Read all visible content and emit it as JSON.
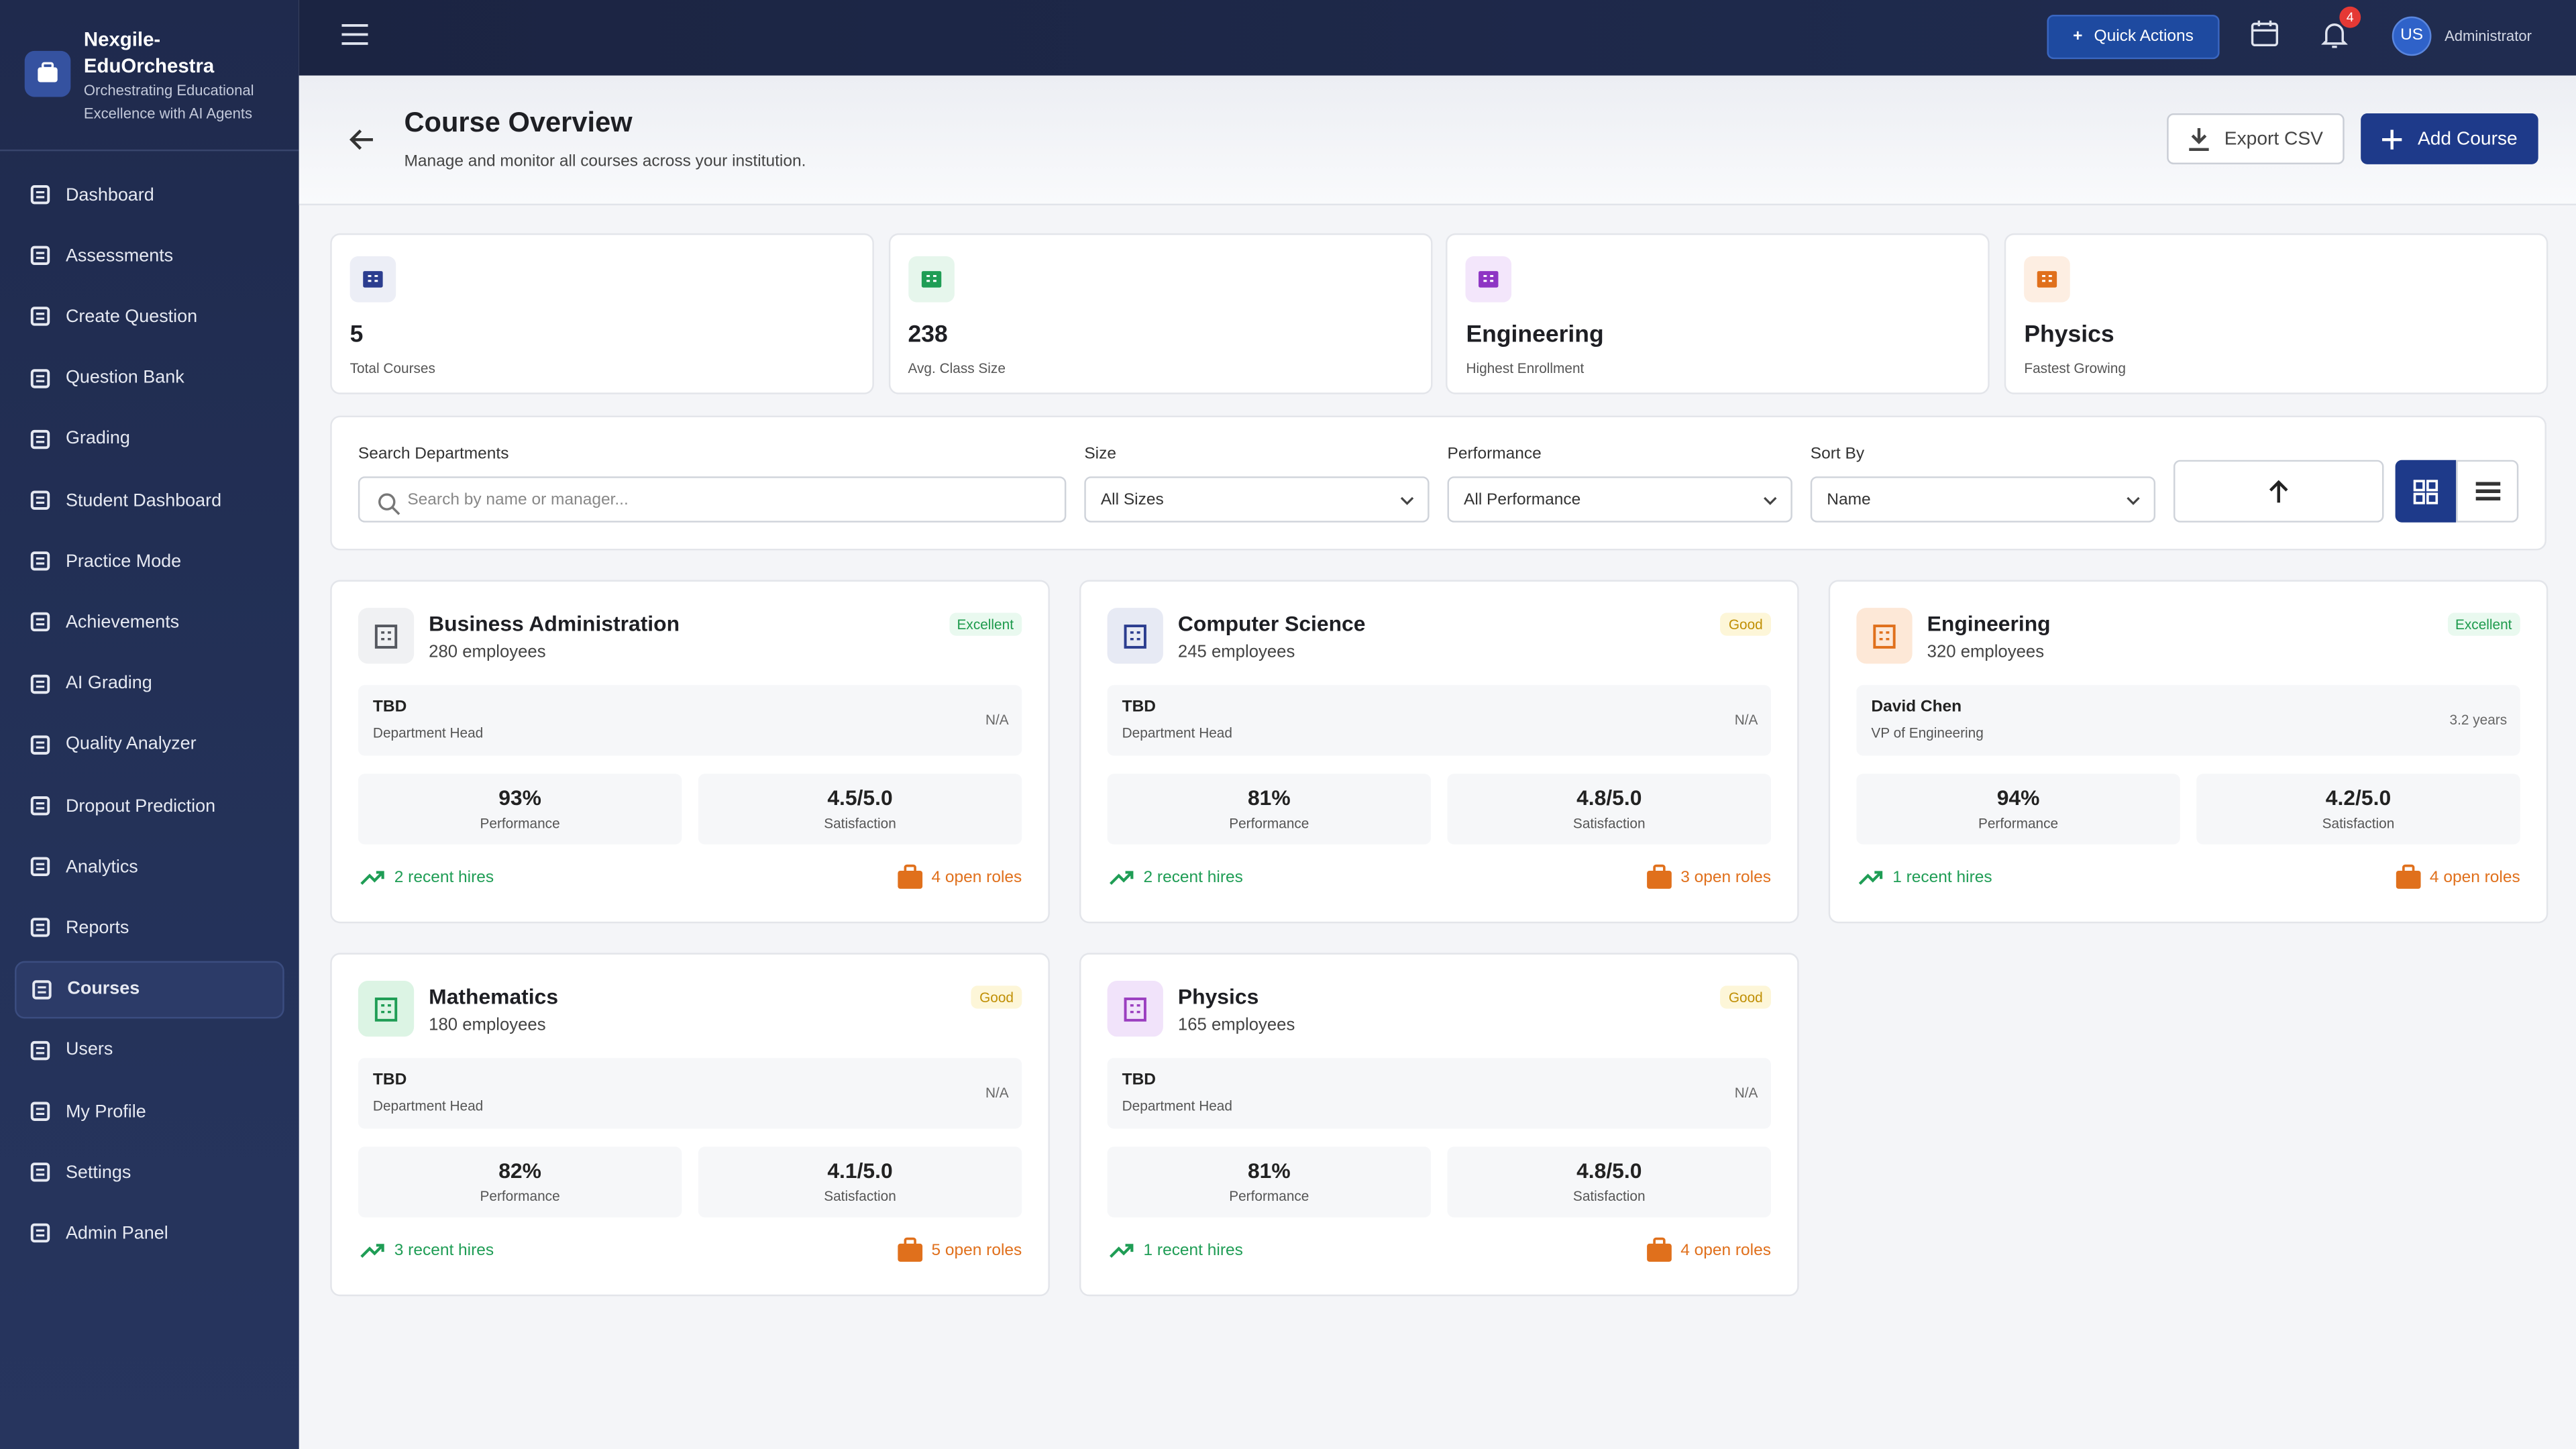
{
  "sidebar": {
    "brand": {
      "name": "Nexgile-EduOrchestra",
      "tagline": "Orchestrating Educational Excellence with AI Agents"
    },
    "nav": [
      {
        "label": "Dashboard"
      },
      {
        "label": "Assessments"
      },
      {
        "label": "Create Question"
      },
      {
        "label": "Question Bank"
      },
      {
        "label": "Grading"
      },
      {
        "label": "Student Dashboard"
      },
      {
        "label": "Practice Mode"
      },
      {
        "label": "Achievements"
      },
      {
        "label": "AI Grading"
      },
      {
        "label": "Quality Analyzer"
      },
      {
        "label": "Dropout Prediction"
      },
      {
        "label": "Analytics"
      },
      {
        "label": "Reports"
      },
      {
        "label": "Courses",
        "active": true
      },
      {
        "label": "Users"
      },
      {
        "label": "My Profile"
      },
      {
        "label": "Settings"
      },
      {
        "label": "Admin Panel"
      }
    ]
  },
  "topbar": {
    "quick_actions": "Quick Actions",
    "notification_count": 4,
    "avatar": "US",
    "role": "Administrator"
  },
  "header": {
    "title": "Course Overview",
    "subtitle": "Manage and monitor all courses across your institution.",
    "export": "Export CSV",
    "add": "Add Course"
  },
  "stats": [
    {
      "value": 5,
      "label": "Total Courses",
      "color": "#2b3d8f",
      "bg": "#eceef6"
    },
    {
      "value": 238,
      "label": "Avg. Class Size",
      "color": "#1f9d55",
      "bg": "#e6f6ec"
    },
    {
      "value": "Engineering",
      "label": "Highest Enrollment",
      "color": "#8e35c4",
      "bg": "#f3e6fb"
    },
    {
      "value": "Physics",
      "label": "Fastest Growing",
      "color": "#e0701c",
      "bg": "#fdeee2"
    }
  ],
  "filters": {
    "search": {
      "label": "Search Departments",
      "placeholder": "Search by name or manager..."
    },
    "size": {
      "label": "Size",
      "value": "All Sizes"
    },
    "performance": {
      "label": "Performance",
      "value": "All Performance"
    },
    "sort": {
      "label": "Sort By",
      "value": "Name"
    }
  },
  "courses": [
    {
      "name": "Business Administration",
      "employees": "280 employees",
      "status": "Excellent",
      "status_color": "#1d9a4c",
      "status_bg": "#e9f9ef",
      "icon_color": "#55585f",
      "icon_bg": "#f0f1f3",
      "head": "TBD",
      "head_role": "Department Head",
      "tenure": "N/A",
      "performance": "93%",
      "performance_label": "Performance",
      "satisfaction": "4.5/5.0",
      "satisfaction_label": "Satisfaction",
      "hires": "2 recent hires",
      "roles": "4 open roles"
    },
    {
      "name": "Computer Science",
      "employees": "245 employees",
      "status": "Good",
      "status_color": "#c08f05",
      "status_bg": "#fdf6d8",
      "icon_color": "#2b3d8f",
      "icon_bg": "#e7eaf4",
      "head": "TBD",
      "head_role": "Department Head",
      "tenure": "N/A",
      "performance": "81%",
      "performance_label": "Performance",
      "satisfaction": "4.8/5.0",
      "satisfaction_label": "Satisfaction",
      "hires": "2 recent hires",
      "roles": "3 open roles"
    },
    {
      "name": "Engineering",
      "employees": "320 employees",
      "status": "Excellent",
      "status_color": "#1d9a4c",
      "status_bg": "#e9f9ef",
      "icon_color": "#e0701c",
      "icon_bg": "#fde8d7",
      "head": "David Chen",
      "head_role": "VP of Engineering",
      "tenure": "3.2 years",
      "performance": "94%",
      "performance_label": "Performance",
      "satisfaction": "4.2/5.0",
      "satisfaction_label": "Satisfaction",
      "hires": "1 recent hires",
      "roles": "4 open roles"
    },
    {
      "name": "Mathematics",
      "employees": "180 employees",
      "status": "Good",
      "status_color": "#c08f05",
      "status_bg": "#fdf6d8",
      "icon_color": "#1f9d55",
      "icon_bg": "#dcf4e4",
      "head": "TBD",
      "head_role": "Department Head",
      "tenure": "N/A",
      "performance": "82%",
      "performance_label": "Performance",
      "satisfaction": "4.1/5.0",
      "satisfaction_label": "Satisfaction",
      "hires": "3 recent hires",
      "roles": "5 open roles"
    },
    {
      "name": "Physics",
      "employees": "165 employees",
      "status": "Good",
      "status_color": "#c08f05",
      "status_bg": "#fdf6d8",
      "icon_color": "#9b3fc0",
      "icon_bg": "#f1e3fa",
      "head": "TBD",
      "head_role": "Department Head",
      "tenure": "N/A",
      "performance": "81%",
      "performance_label": "Performance",
      "satisfaction": "4.8/5.0",
      "satisfaction_label": "Satisfaction",
      "hires": "1 recent hires",
      "roles": "4 open roles"
    }
  ]
}
